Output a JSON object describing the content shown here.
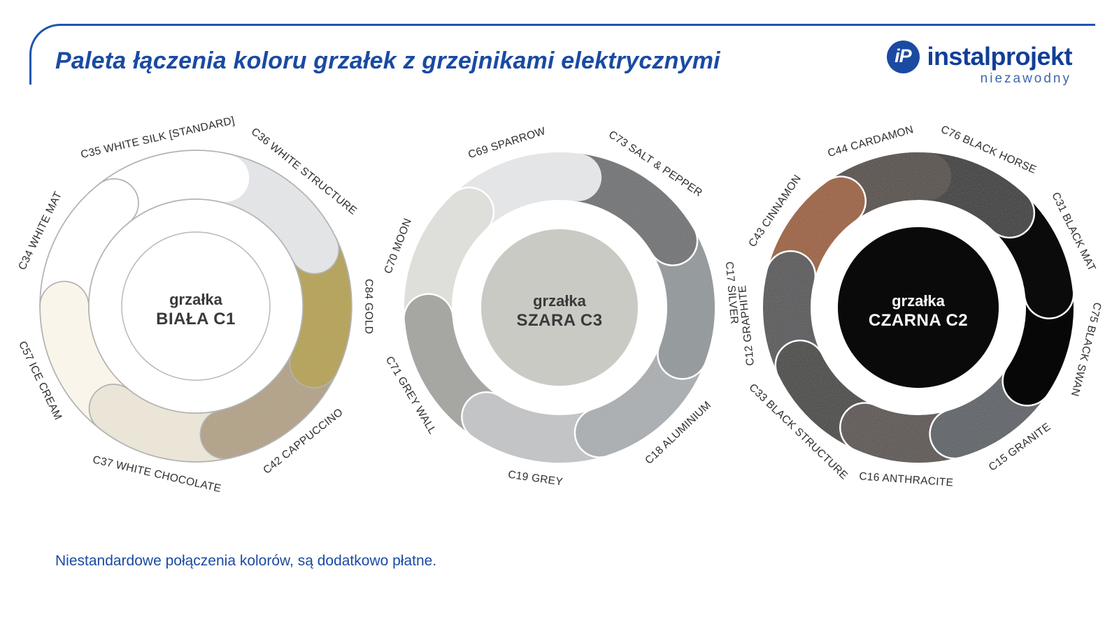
{
  "header": {
    "title": "Paleta łączenia koloru grzałek z grzejnikami elektrycznymi",
    "logo": {
      "mark": "iP",
      "name": "instalprojekt",
      "tagline": "niezawodny"
    },
    "accent_color": "#1e55ae"
  },
  "footer": {
    "note": "Niestandardowe połączenia kolorów, są dodatkowo płatne."
  },
  "label_text_color": "#2e2e2e",
  "chart_data": [
    {
      "type": "donut",
      "name": "grzalka-biala-c1",
      "center_label_lines": [
        "grzałka",
        "BIAŁA C1"
      ],
      "center_fill": "#ffffff",
      "center_stroke": "#b9b9b9",
      "center_text_color": "#3a3a3a",
      "separator_color": "#b3b3b3",
      "start_angle": 13,
      "legend_position": "around",
      "segments": [
        {
          "label": "C36 WHITE STRUCTURE",
          "color": "#e9ebee",
          "textured": true
        },
        {
          "label": "C84 GOLD",
          "color": "#b5a13c",
          "textured": true
        },
        {
          "label": "C42 CAPPUCCINO",
          "color": "#b2a083",
          "textured": true
        },
        {
          "label": "C37 WHITE CHOCOLATE",
          "color": "#eae5d6",
          "textured": false
        },
        {
          "label": "C57 ICE CREAM",
          "color": "#faf5ea",
          "textured": false
        },
        {
          "label": "C34 WHITE MAT",
          "color": "#ffffff",
          "textured": false
        },
        {
          "label": "C35 WHITE SILK [STANDARD]",
          "color": "#ffffff",
          "textured": false
        }
      ]
    },
    {
      "type": "donut",
      "name": "grzalka-szara-c3",
      "center_label_lines": [
        "grzałka",
        "SZARA C3"
      ],
      "center_fill": "#cacac5",
      "center_stroke": null,
      "center_text_color": "#3a3a3a",
      "separator_color": "#ffffff",
      "start_angle": 8,
      "legend_position": "around",
      "segments": [
        {
          "label": "C73 SALT & PEPPER",
          "color": "#67696b",
          "textured": true
        },
        {
          "label": "C17 SILVER",
          "color": "#8e9498",
          "textured": true
        },
        {
          "label": "C18 ALUMINIUM",
          "color": "#a9adb1",
          "textured": true
        },
        {
          "label": "C19 GREY",
          "color": "#c2c4c6",
          "textured": false
        },
        {
          "label": "C71 GREY WALL",
          "color": "#a6a6a2",
          "textured": false
        },
        {
          "label": "C70 MOON",
          "color": "#dededa",
          "textured": false
        },
        {
          "label": "C69 SPARROW",
          "color": "#e3e5e7",
          "textured": false
        }
      ]
    },
    {
      "type": "donut",
      "name": "grzalka-czarna-c2",
      "center_label_lines": [
        "grzałka",
        "CZARNA C2"
      ],
      "center_fill": "#0a0a0a",
      "center_stroke": null,
      "center_text_color": "#ffffff",
      "separator_color": "#ffffff",
      "start_angle": 4,
      "legend_position": "around",
      "segments": [
        {
          "label": "C76 BLACK HORSE",
          "color": "#0e0e0e",
          "textured": true
        },
        {
          "label": "C31 BLACK MAT",
          "color": "#0b0b0b",
          "textured": false
        },
        {
          "label": "C75 BLACK SWAN",
          "color": "#070707",
          "textured": false
        },
        {
          "label": "C15 GRANITE",
          "color": "#4f555b",
          "textured": true
        },
        {
          "label": "C16 ANTHRACITE",
          "color": "#4b423f",
          "textured": true
        },
        {
          "label": "C33 BLACK STRUCTURE",
          "color": "#2e2a28",
          "textured": true
        },
        {
          "label": "C12 GRAPHITE",
          "color": "#464648",
          "textured": true
        },
        {
          "label": "C43 CINNAMON",
          "color": "#9a5318",
          "textured": true
        },
        {
          "label": "C44 CARDAMON",
          "color": "#443930",
          "textured": true
        }
      ]
    }
  ]
}
